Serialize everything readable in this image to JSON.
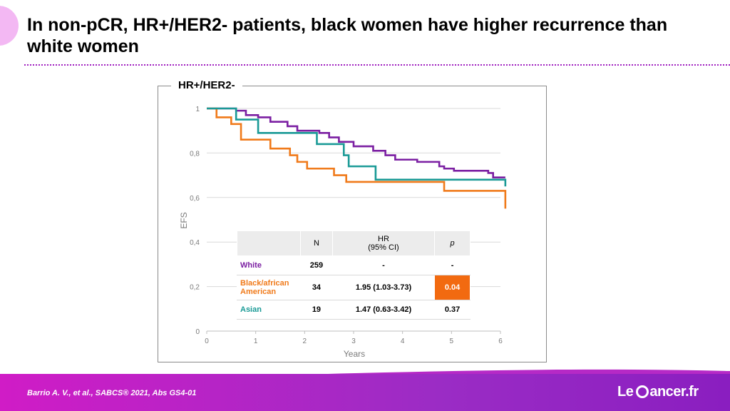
{
  "slide": {
    "title": "In non-pCR, HR+/HER2- patients, black women have higher recurrence than white women",
    "citation": "Barrio A. V., et al., SABCS® 2021, Abs GS4-01",
    "brand_prefix": "Le",
    "brand_suffix": "ancer.fr"
  },
  "colors": {
    "White": "#7b1fa2",
    "Black/african American": "#f07a1a",
    "Asian": "#1a9a96",
    "highlight": "#f26a10",
    "accent": "#a020c0"
  },
  "chart_data": {
    "type": "line",
    "step": true,
    "title": "HR+/HER2-",
    "xlabel": "Years",
    "ylabel": "EFS",
    "xlim": [
      0,
      6
    ],
    "ylim": [
      0,
      1
    ],
    "x_ticks": [
      "0",
      "1",
      "2",
      "3",
      "4",
      "5",
      "6"
    ],
    "y_ticks": [
      "0",
      "0,2",
      "0,4",
      "0,6",
      "0,8",
      "1"
    ],
    "grid": "horizontal",
    "series": [
      {
        "name": "White",
        "x": [
          0,
          0.6,
          0.8,
          1.05,
          1.3,
          1.65,
          1.85,
          2.3,
          2.5,
          2.7,
          3.0,
          3.4,
          3.65,
          3.85,
          4.3,
          4.75,
          4.85,
          5.05,
          5.75,
          5.85,
          6.1
        ],
        "y": [
          1.0,
          0.99,
          0.97,
          0.96,
          0.94,
          0.92,
          0.9,
          0.89,
          0.87,
          0.85,
          0.83,
          0.81,
          0.79,
          0.77,
          0.76,
          0.74,
          0.73,
          0.72,
          0.71,
          0.69,
          0.69
        ]
      },
      {
        "name": "Black/african American",
        "x": [
          0,
          0.2,
          0.5,
          0.7,
          1.3,
          1.7,
          1.85,
          2.05,
          2.6,
          2.85,
          4.85,
          6.1
        ],
        "y": [
          1.0,
          0.96,
          0.93,
          0.86,
          0.82,
          0.79,
          0.76,
          0.73,
          0.7,
          0.67,
          0.63,
          0.55
        ]
      },
      {
        "name": "Asian",
        "x": [
          0,
          0.6,
          1.05,
          2.25,
          2.8,
          2.9,
          3.45,
          6.1
        ],
        "y": [
          1.0,
          0.95,
          0.89,
          0.84,
          0.79,
          0.74,
          0.68,
          0.65
        ]
      }
    ]
  },
  "table": {
    "headers": [
      "",
      "N",
      "HR\n(95% CI)",
      "p"
    ],
    "rows": [
      {
        "group": "White",
        "n": "259",
        "hr": "-",
        "p": "-"
      },
      {
        "group": "Black/african American",
        "n": "34",
        "hr": "1.95 (1.03-3.73)",
        "p": "0.04"
      },
      {
        "group": "Asian",
        "n": "19",
        "hr": "1.47 (0.63-3.42)",
        "p": "0.37"
      }
    ]
  }
}
